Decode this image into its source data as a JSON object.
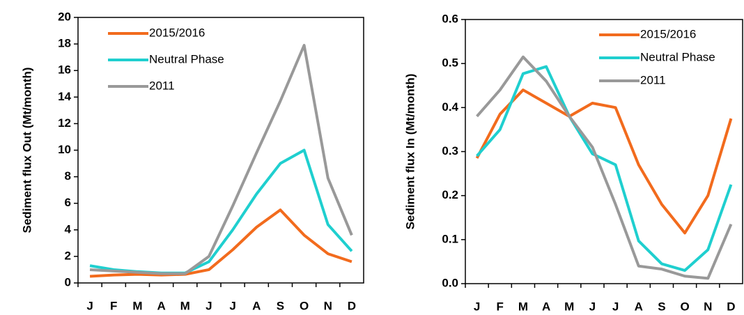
{
  "chart_data": [
    {
      "type": "line",
      "ylabel": "Sediment flux Out (Mt/month)",
      "categories": [
        "J",
        "F",
        "M",
        "A",
        "M",
        "J",
        "J",
        "A",
        "S",
        "O",
        "N",
        "D"
      ],
      "ylim": [
        0,
        20
      ],
      "yticks": [
        0,
        2,
        4,
        6,
        8,
        10,
        12,
        14,
        16,
        18,
        20
      ],
      "series": [
        {
          "name": "2015/2016",
          "color": "#f26b1d",
          "values": [
            0.5,
            0.6,
            0.65,
            0.6,
            0.65,
            1.0,
            2.5,
            4.2,
            5.5,
            3.6,
            2.2,
            1.6
          ]
        },
        {
          "name": "Neutral Phase",
          "color": "#1fcfcf",
          "values": [
            1.3,
            1.0,
            0.85,
            0.75,
            0.75,
            1.6,
            4.0,
            6.7,
            9.0,
            10.0,
            4.4,
            2.4
          ]
        },
        {
          "name": "2011",
          "color": "#999999",
          "values": [
            1.0,
            0.9,
            0.8,
            0.7,
            0.7,
            2.0,
            5.8,
            9.8,
            13.7,
            17.9,
            7.9,
            3.6
          ]
        }
      ]
    },
    {
      "type": "line",
      "ylabel": "Sediment flux In (Mt/month)",
      "categories": [
        "J",
        "F",
        "M",
        "A",
        "M",
        "J",
        "J",
        "A",
        "S",
        "O",
        "N",
        "D"
      ],
      "ylim": [
        0,
        0.6
      ],
      "yticks": [
        {
          "value": 0,
          "label": "0.0"
        },
        0.1,
        0.2,
        0.3,
        0.4,
        0.5,
        0.6
      ],
      "series": [
        {
          "name": "2015/2016",
          "color": "#f26b1d",
          "values": [
            0.285,
            0.385,
            0.44,
            0.41,
            0.38,
            0.41,
            0.4,
            0.27,
            0.18,
            0.115,
            0.2,
            0.375
          ]
        },
        {
          "name": "Neutral Phase",
          "color": "#1fcfcf",
          "values": [
            0.29,
            0.35,
            0.477,
            0.493,
            0.38,
            0.295,
            0.27,
            0.097,
            0.045,
            0.03,
            0.077,
            0.225
          ]
        },
        {
          "name": "2011",
          "color": "#999999",
          "values": [
            0.38,
            0.44,
            0.515,
            0.46,
            0.38,
            0.31,
            0.18,
            0.04,
            0.033,
            0.017,
            0.012,
            0.135
          ]
        }
      ]
    }
  ]
}
